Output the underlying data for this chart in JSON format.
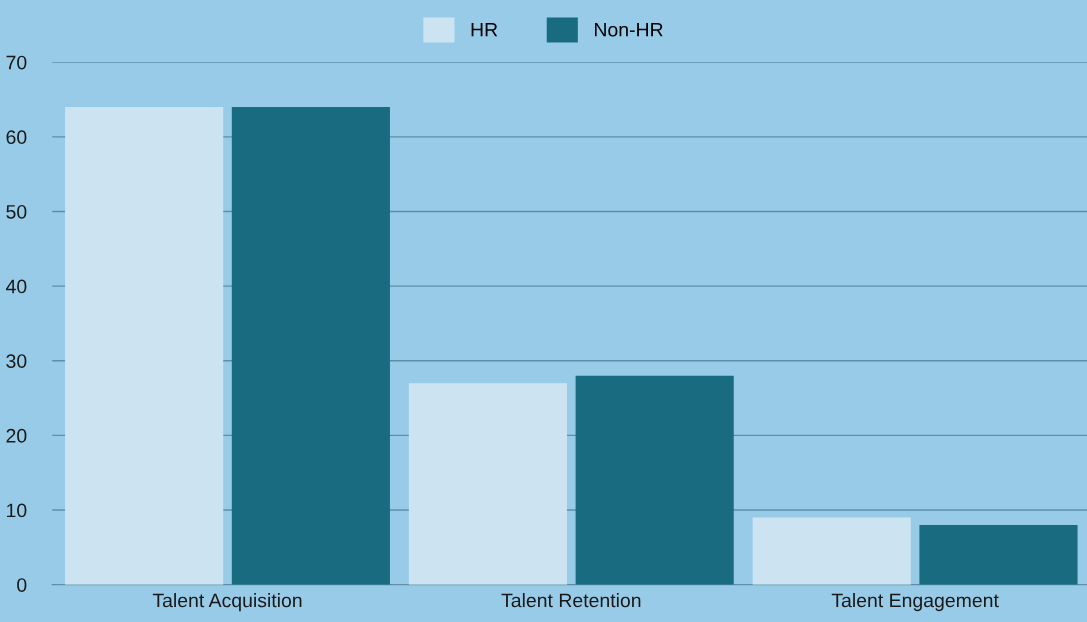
{
  "chart_data": {
    "type": "bar",
    "categories": [
      "Talent Acquisition",
      "Talent Retention",
      "Talent Engagement"
    ],
    "series": [
      {
        "name": "HR",
        "color": "#cce4f1",
        "values": [
          64,
          27,
          9
        ]
      },
      {
        "name": "Non-HR",
        "color": "#196b80",
        "values": [
          64,
          28,
          8
        ]
      }
    ],
    "ylim": [
      0,
      70
    ],
    "yticks": [
      0,
      10,
      20,
      30,
      40,
      50,
      60,
      70
    ],
    "grid": "y",
    "legend": "top"
  }
}
